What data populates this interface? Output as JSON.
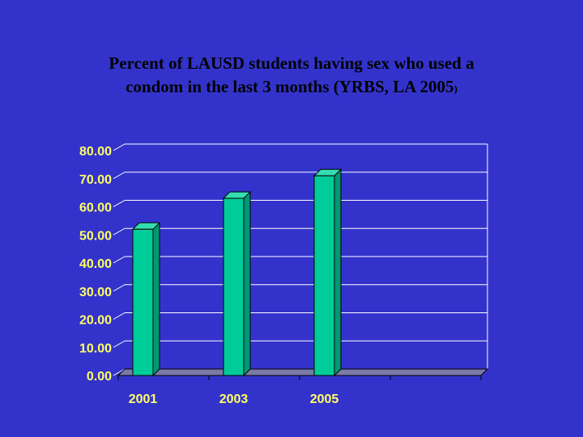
{
  "slide": {
    "title_line1": "Percent of LAUSD students having sex who used a",
    "title_line2": "condom in the last 3 months (YRBS, LA 2005",
    "title_suffix": ")"
  },
  "colors": {
    "background": "#3333cc",
    "bar_front": "#00cc99",
    "bar_side": "#009973",
    "bar_top": "#33ddb0",
    "gridline": "#ffffff",
    "floor": "#7a7aa8",
    "tick_text": "#ffff66"
  },
  "chart_data": {
    "type": "bar",
    "title": "Percent of LAUSD students having sex who used a condom in the last 3 months (YRBS, LA 2005)",
    "categories": [
      "2001",
      "2003",
      "2005"
    ],
    "values": [
      52,
      63,
      71
    ],
    "xlabel": "",
    "ylabel": "",
    "ylim": [
      0,
      80
    ],
    "yticks": [
      "0.00",
      "10.00",
      "20.00",
      "30.00",
      "40.00",
      "50.00",
      "60.00",
      "70.00",
      "80.00"
    ],
    "grid": true,
    "style": "3d-column"
  }
}
